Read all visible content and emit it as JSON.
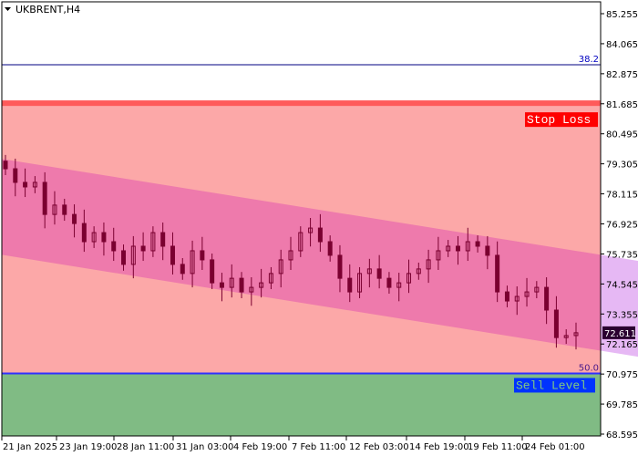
{
  "window": {
    "title": "UKBRENT,H4",
    "menu_icon": "triangle-down-icon"
  },
  "colors": {
    "stop_zone": "#fca8a8",
    "stop_line": "#ff5a5a",
    "channel": "#ee7aac",
    "channel_ext": "#e6b8f4",
    "sell_zone": "#80bb84",
    "fib_line": "#000080",
    "candle": "#7a0030",
    "current_price_bg": "#2a0030"
  },
  "levels": {
    "fib_382": {
      "label": "38.2",
      "price": 83.23
    },
    "stop_loss": {
      "label": "Stop Loss",
      "price": 81.6
    },
    "fib_50": {
      "label": "50.0",
      "price": 71.0
    },
    "sell_level": {
      "label": "Sell Level",
      "price": 71.0
    }
  },
  "current_price": "72.611",
  "chart_data": {
    "type": "candlestick",
    "symbol": "UKBRENT",
    "timeframe": "H4",
    "ylim": [
      68.595,
      85.255
    ],
    "y_ticks": [
      "85.255",
      "84.065",
      "82.875",
      "81.685",
      "80.495",
      "79.305",
      "78.115",
      "76.925",
      "75.735",
      "74.545",
      "73.355",
      "72.165",
      "70.975",
      "69.785",
      "68.595"
    ],
    "x_ticks": [
      "21 Jan 2025",
      "23 Jan 19:00",
      "28 Jan 11:00",
      "31 Jan 03:00",
      "4 Feb 19:00",
      "7 Feb 11:00",
      "12 Feb 03:00",
      "14 Feb 19:00",
      "19 Feb 11:00",
      "24 Feb 01:00"
    ],
    "channel": {
      "upper_start": 79.5,
      "upper_end": 75.7,
      "lower_start": 75.7,
      "lower_end": 71.9
    },
    "closes": [
      79.11,
      78.57,
      78.39,
      78.57,
      77.3,
      77.67,
      77.3,
      76.94,
      76.22,
      76.58,
      76.22,
      75.86,
      75.32,
      76.04,
      75.86,
      76.58,
      76.04,
      75.32,
      74.96,
      75.86,
      75.5,
      74.59,
      74.41,
      74.77,
      74.23,
      74.41,
      74.59,
      74.96,
      75.5,
      75.86,
      76.58,
      76.76,
      76.22,
      75.68,
      74.77,
      74.23,
      74.96,
      75.14,
      74.77,
      74.41,
      74.59,
      74.96,
      75.14,
      75.5,
      75.86,
      76.04,
      75.86,
      76.22,
      76.04,
      75.68,
      74.23,
      73.87,
      74.05,
      74.23,
      74.41,
      73.51,
      72.42,
      72.5,
      72.611
    ]
  }
}
